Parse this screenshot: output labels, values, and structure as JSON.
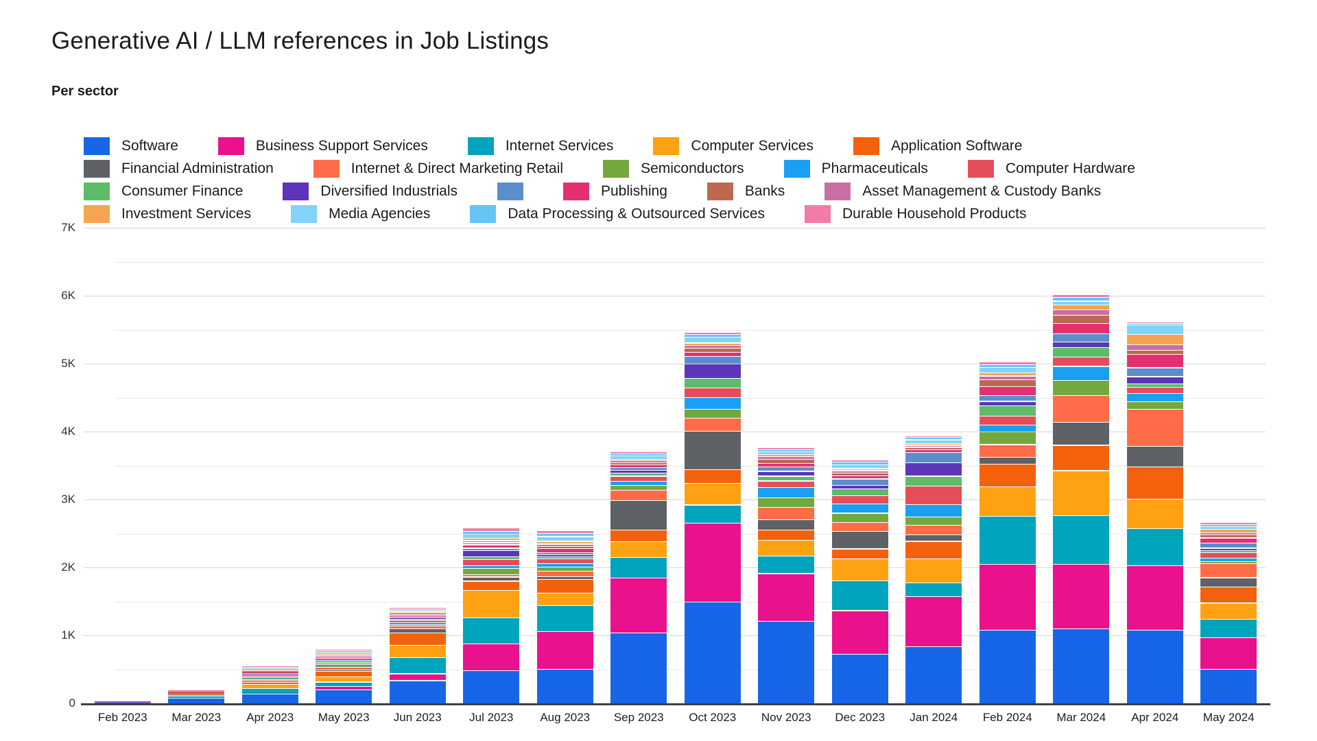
{
  "header": {
    "title": "Generative AI / LLM references in Job Listings",
    "subtitle": "Per sector"
  },
  "chart_data": {
    "type": "stacked-bar",
    "title": "Generative AI / LLM references in Job Listings",
    "subtitle": "Per sector",
    "xlabel": "",
    "ylabel": "",
    "ylim": [
      0,
      7000
    ],
    "y_tick_step": 500,
    "y_label_step": 1000,
    "y_tick_labels": [
      "0",
      "1K",
      "2K",
      "3K",
      "4K",
      "5K",
      "6K",
      "7K"
    ],
    "grid": true,
    "legend_position": "top",
    "axis_colors": {
      "baseline": "#3f3f3f",
      "major_grid": "#d7d7d7",
      "minor_grid": "#e9e9e9"
    },
    "categories": [
      "Feb 2023",
      "Mar 2023",
      "Apr 2023",
      "May 2023",
      "Jun 2023",
      "Jul 2023",
      "Aug 2023",
      "Sep 2023",
      "Oct 2023",
      "Nov 2023",
      "Dec 2023",
      "Jan 2024",
      "Feb 2024",
      "Mar 2024",
      "Apr 2024",
      "May 2024"
    ],
    "legend_rows": [
      [
        0,
        1,
        2,
        3,
        4
      ],
      [
        5,
        6,
        7,
        8,
        9
      ],
      [
        10,
        11,
        12,
        13,
        14,
        15
      ],
      [
        16,
        17,
        18,
        19
      ]
    ],
    "series": [
      {
        "name": "Software",
        "color": "#1766e8",
        "values": [
          8,
          85,
          140,
          200,
          340,
          490,
          505,
          1040,
          1500,
          1210,
          730,
          840,
          1080,
          1100,
          1080,
          510
        ]
      },
      {
        "name": "Business Support Services",
        "color": "#e9118c",
        "values": [
          2,
          8,
          15,
          50,
          100,
          390,
          555,
          810,
          1160,
          705,
          640,
          740,
          975,
          950,
          950,
          460
        ]
      },
      {
        "name": "Internet Services",
        "color": "#00a4bc",
        "values": [
          2,
          20,
          65,
          70,
          235,
          380,
          385,
          300,
          265,
          255,
          440,
          200,
          700,
          720,
          550,
          275
        ]
      },
      {
        "name": "Computer Services",
        "color": "#fea113",
        "values": [
          1,
          8,
          65,
          75,
          185,
          410,
          185,
          235,
          320,
          235,
          320,
          355,
          440,
          660,
          435,
          235
        ]
      },
      {
        "name": "Application Software",
        "color": "#f4610c",
        "values": [
          1,
          5,
          30,
          85,
          185,
          135,
          200,
          170,
          200,
          150,
          150,
          255,
          335,
          375,
          470,
          235
        ]
      },
      {
        "name": "Financial Administration",
        "color": "#5e6166",
        "values": [
          1,
          3,
          15,
          20,
          60,
          60,
          40,
          440,
          570,
          150,
          255,
          100,
          100,
          335,
          305,
          140
        ]
      },
      {
        "name": "Internet & Direct Marketing Retail",
        "color": "#ff6c47",
        "values": [
          2,
          8,
          25,
          35,
          35,
          35,
          80,
          150,
          185,
          185,
          135,
          135,
          185,
          400,
          545,
          210
        ]
      },
      {
        "name": "Semiconductors",
        "color": "#73a83e",
        "values": [
          1,
          5,
          12,
          15,
          25,
          95,
          60,
          70,
          135,
          140,
          135,
          120,
          185,
          220,
          110,
          30
        ]
      },
      {
        "name": "Pharmaceuticals",
        "color": "#1b9ff2",
        "values": [
          1,
          8,
          18,
          25,
          30,
          40,
          50,
          60,
          170,
          150,
          135,
          185,
          100,
          205,
          125,
          45
        ]
      },
      {
        "name": "Computer Hardware",
        "color": "#e54d5b",
        "values": [
          3,
          10,
          20,
          25,
          25,
          90,
          70,
          75,
          145,
          100,
          120,
          270,
          135,
          140,
          90,
          85
        ]
      },
      {
        "name": "Consumer Finance",
        "color": "#5dbb6a",
        "values": [
          0,
          2,
          10,
          15,
          20,
          40,
          35,
          45,
          140,
          70,
          100,
          150,
          150,
          140,
          50,
          25
        ]
      },
      {
        "name": "Diversified Industrials",
        "color": "#5c35bb",
        "values": [
          0,
          2,
          20,
          20,
          20,
          90,
          25,
          40,
          210,
          70,
          50,
          200,
          65,
          80,
          105,
          40
        ]
      },
      {
        "name": "",
        "color": "#5c8ecb",
        "values": [
          0,
          2,
          12,
          15,
          15,
          35,
          35,
          40,
          110,
          70,
          100,
          150,
          85,
          120,
          130,
          75
        ]
      },
      {
        "name": "Publishing",
        "color": "#e23071",
        "values": [
          1,
          3,
          15,
          20,
          25,
          50,
          60,
          45,
          65,
          50,
          45,
          40,
          135,
          155,
          195,
          75
        ]
      },
      {
        "name": "Banks",
        "color": "#bd6951",
        "values": [
          3,
          8,
          10,
          15,
          15,
          30,
          30,
          25,
          55,
          60,
          40,
          35,
          100,
          120,
          65,
          45
        ]
      },
      {
        "name": "Asset Management & Custody Banks",
        "color": "#c96fa6",
        "values": [
          0,
          2,
          15,
          20,
          15,
          30,
          35,
          30,
          45,
          35,
          35,
          30,
          55,
          80,
          80,
          35
        ]
      },
      {
        "name": "Investment Services",
        "color": "#f7a34f",
        "values": [
          0,
          2,
          15,
          25,
          20,
          35,
          40,
          25,
          35,
          30,
          30,
          25,
          45,
          70,
          150,
          50
        ]
      },
      {
        "name": "Media Agencies",
        "color": "#81d3f9",
        "values": [
          0,
          2,
          20,
          30,
          25,
          60,
          70,
          45,
          85,
          40,
          60,
          55,
          80,
          55,
          140,
          40
        ]
      },
      {
        "name": "Data Processing & Outsourced Services",
        "color": "#65c3f5",
        "values": [
          0,
          2,
          12,
          20,
          20,
          45,
          45,
          30,
          40,
          35,
          40,
          35,
          45,
          60,
          20,
          30
        ]
      },
      {
        "name": "Durable Household Products",
        "color": "#f27ba8",
        "values": [
          0,
          2,
          10,
          15,
          15,
          50,
          40,
          30,
          30,
          30,
          25,
          25,
          35,
          40,
          15,
          25
        ]
      }
    ]
  }
}
